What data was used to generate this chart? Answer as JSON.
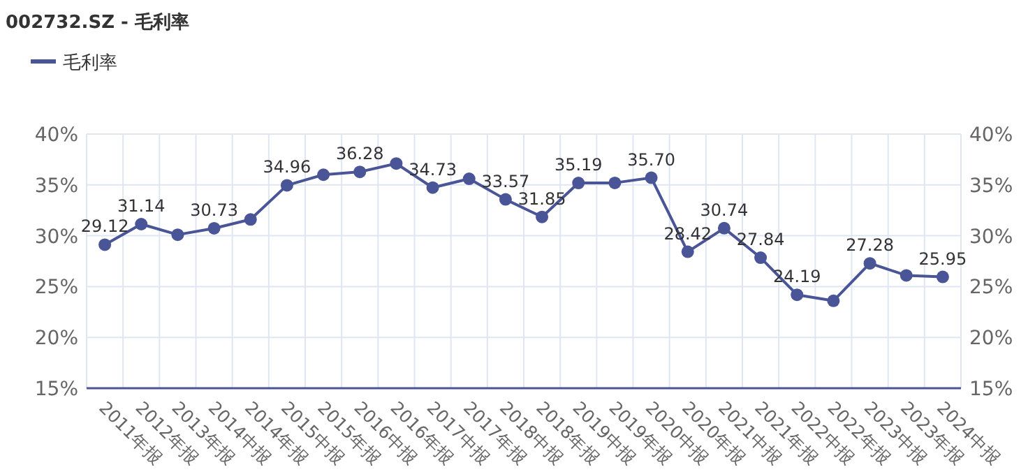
{
  "chart_data": {
    "type": "line",
    "title": "002732.SZ - 毛利率",
    "categories": [
      "2011年报",
      "2012年报",
      "2013年报",
      "2014中报",
      "2014年报",
      "2015中报",
      "2015年报",
      "2016中报",
      "2016年报",
      "2017中报",
      "2017年报",
      "2018中报",
      "2018年报",
      "2019中报",
      "2019年报",
      "2020中报",
      "2020年报",
      "2021中报",
      "2021年报",
      "2022中报",
      "2022年报",
      "2023中报",
      "2023年报",
      "2024中报"
    ],
    "series": [
      {
        "name": "毛利率",
        "color": "#4a5597",
        "values": [
          29.12,
          31.14,
          30.1,
          30.73,
          31.6,
          34.96,
          36.0,
          36.28,
          37.1,
          34.73,
          35.6,
          33.57,
          31.85,
          35.19,
          35.2,
          35.7,
          28.42,
          30.74,
          27.84,
          24.19,
          23.6,
          27.28,
          26.1,
          25.95
        ],
        "value_labels": [
          "29.12",
          "31.14",
          null,
          "30.73",
          null,
          "34.96",
          null,
          "36.28",
          null,
          "34.73",
          null,
          "33.57",
          "31.85",
          "35.19",
          null,
          "35.70",
          "28.42",
          "30.74",
          "27.84",
          "24.19",
          null,
          "27.28",
          null,
          "25.95"
        ]
      }
    ],
    "ylim": [
      15,
      40
    ],
    "yticks": [
      {
        "value": 15,
        "label": "15%"
      },
      {
        "value": 20,
        "label": "20%"
      },
      {
        "value": 25,
        "label": "25%"
      },
      {
        "value": 30,
        "label": "30%"
      },
      {
        "value": 35,
        "label": "35%"
      },
      {
        "value": 40,
        "label": "40%"
      }
    ],
    "y2lim": [
      15,
      40
    ],
    "y2ticks": [
      {
        "value": 15,
        "label": "15%"
      },
      {
        "value": 20,
        "label": "20%"
      },
      {
        "value": 25,
        "label": "25%"
      },
      {
        "value": 30,
        "label": "30%"
      },
      {
        "value": 35,
        "label": "35%"
      },
      {
        "value": 40,
        "label": "40%"
      }
    ],
    "grid": true,
    "legend": "top left",
    "marker": "circle",
    "line_style": "solid"
  }
}
